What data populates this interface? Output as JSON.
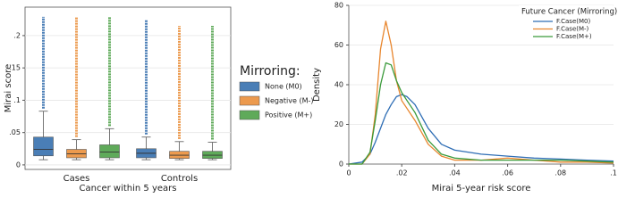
{
  "chart_data": [
    {
      "type": "box",
      "y_label": "Mirai score",
      "x_label": "Cancer within 5 years",
      "categories": [
        "Cases",
        "Controls"
      ],
      "legend_title": "Mirroring:",
      "ylim": [
        -0.007,
        0.244
      ],
      "yticks": [
        0,
        {
          "value": 0.05,
          "label": ".05"
        },
        {
          "value": 0.1,
          "label": ".1"
        },
        {
          "value": 0.15,
          "label": ".15"
        },
        {
          "value": 0.2,
          "label": ".2"
        }
      ],
      "grid": true,
      "series": [
        {
          "name": "None (M0)",
          "color": "#4a7eb6",
          "boxes": [
            {
              "low": 0.008,
              "q1": 0.014,
              "median": 0.024,
              "q3": 0.043,
              "high": 0.083,
              "max": 0.229
            },
            {
              "low": 0.008,
              "q1": 0.011,
              "median": 0.018,
              "q3": 0.025,
              "high": 0.043,
              "max": 0.225
            }
          ]
        },
        {
          "name": "Negative (M-)",
          "color": "#ec9a4e",
          "boxes": [
            {
              "low": 0.008,
              "q1": 0.011,
              "median": 0.017,
              "q3": 0.024,
              "high": 0.039,
              "max": 0.228
            },
            {
              "low": 0.008,
              "q1": 0.01,
              "median": 0.015,
              "q3": 0.021,
              "high": 0.036,
              "max": 0.215
            }
          ]
        },
        {
          "name": "Positive (M+)",
          "color": "#5faa5a",
          "boxes": [
            {
              "low": 0.008,
              "q1": 0.011,
              "median": 0.02,
              "q3": 0.031,
              "high": 0.056,
              "max": 0.229
            },
            {
              "low": 0.008,
              "q1": 0.01,
              "median": 0.015,
              "q3": 0.021,
              "high": 0.035,
              "max": 0.215
            }
          ]
        }
      ]
    },
    {
      "type": "line",
      "y_label": "Density",
      "x_label": "Mirai 5-year risk score",
      "legend_title": "Future Cancer (Mirroring)",
      "xlim": [
        0,
        0.1
      ],
      "ylim": [
        0,
        80
      ],
      "xticks": [
        0,
        {
          "value": 0.02,
          "label": ".02"
        },
        {
          "value": 0.04,
          "label": ".04"
        },
        {
          "value": 0.06,
          "label": ".06"
        },
        {
          "value": 0.08,
          "label": ".08"
        },
        {
          "value": 0.1,
          "label": ".1"
        }
      ],
      "yticks": [
        0,
        20,
        40,
        60,
        80
      ],
      "grid": true,
      "x": [
        0,
        0.005,
        0.008,
        0.01,
        0.012,
        0.014,
        0.016,
        0.018,
        0.02,
        0.022,
        0.025,
        0.03,
        0.035,
        0.04,
        0.05,
        0.06,
        0.07,
        0.08,
        0.09,
        0.1
      ],
      "series": [
        {
          "name": "F.Case(M0)",
          "color": "#2f6eb5",
          "values": [
            0,
            1,
            5,
            11,
            18,
            25,
            30,
            34,
            35,
            34,
            30,
            18,
            10,
            7,
            5,
            4,
            3,
            2.5,
            2,
            1.5
          ]
        },
        {
          "name": "F.Case(M-)",
          "color": "#e8862e",
          "values": [
            0,
            0,
            5,
            25,
            58,
            72,
            60,
            42,
            32,
            28,
            22,
            10,
            4,
            2,
            2,
            3,
            2,
            1,
            1,
            0.5
          ]
        },
        {
          "name": "F.Case(M+)",
          "color": "#3a9a3a",
          "values": [
            0,
            0,
            6,
            22,
            40,
            51,
            50,
            42,
            36,
            32,
            26,
            12,
            5,
            3,
            2,
            2,
            2,
            2,
            1.5,
            1
          ]
        }
      ]
    }
  ]
}
